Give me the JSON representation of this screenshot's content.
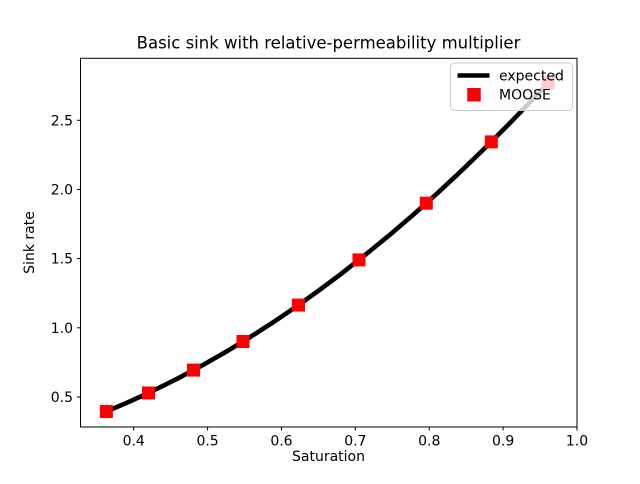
{
  "chart_data": {
    "type": "line",
    "title": "Basic sink with relative-permeability multiplier",
    "xlabel": "Saturation",
    "ylabel": "Sink rate",
    "xlim": [
      0.328,
      1.0
    ],
    "ylim": [
      0.283,
      2.948
    ],
    "xticks": [
      0.4,
      0.5,
      0.6,
      0.7,
      0.8,
      0.9,
      1.0
    ],
    "yticks": [
      0.5,
      1.0,
      1.5,
      2.0,
      2.5
    ],
    "grid": false,
    "legend_position": "upper right",
    "colors": {
      "expected_line": "#000000",
      "moose_marker": "#ff0000",
      "legend_border": "#cccccc"
    },
    "series": [
      {
        "name": "expected",
        "type": "line",
        "color": "#000000",
        "linewidth": 4.6,
        "x": [
          0.363,
          0.395,
          0.427,
          0.459,
          0.491,
          0.523,
          0.555,
          0.587,
          0.619,
          0.651,
          0.683,
          0.715,
          0.747,
          0.779,
          0.811,
          0.843,
          0.875,
          0.907,
          0.939,
          0.97
        ],
        "y": [
          0.395,
          0.468,
          0.547,
          0.632,
          0.723,
          0.821,
          0.924,
          1.034,
          1.149,
          1.271,
          1.399,
          1.534,
          1.674,
          1.82,
          1.973,
          2.132,
          2.297,
          2.468,
          2.645,
          2.823
        ]
      },
      {
        "name": "MOOSE",
        "type": "scatter",
        "color": "#ff0000",
        "marker": "square",
        "markersize": 13,
        "x": [
          0.363,
          0.42,
          0.481,
          0.548,
          0.623,
          0.705,
          0.796,
          0.884,
          0.961
        ],
        "y": [
          0.395,
          0.529,
          0.694,
          0.901,
          1.164,
          1.491,
          1.901,
          2.344,
          2.77
        ]
      }
    ]
  }
}
